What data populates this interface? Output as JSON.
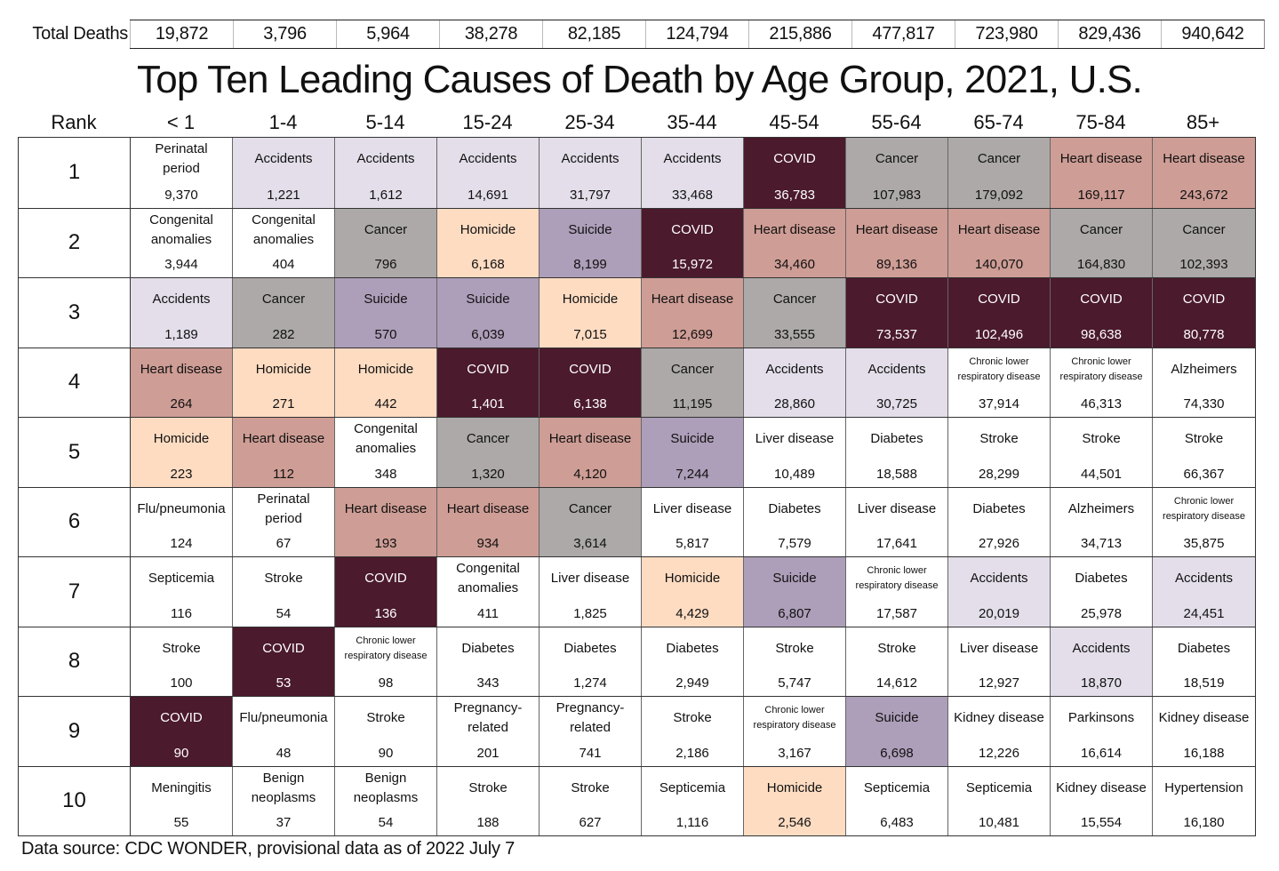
{
  "chart_data": {
    "type": "table",
    "title": "Top Ten Leading Causes of Death by Age Group, 2021, U.S.",
    "source": "Data source: CDC WONDER, provisional data as of 2022 July 7",
    "rank_header": "Rank",
    "totals_label": "Total Deaths",
    "age_groups": [
      "< 1",
      "1-4",
      "5-14",
      "15-24",
      "25-34",
      "35-44",
      "45-54",
      "55-64",
      "65-74",
      "75-84",
      "85+"
    ],
    "total_deaths": [
      "19,872",
      "3,796",
      "5,964",
      "38,278",
      "82,185",
      "124,794",
      "215,886",
      "477,817",
      "723,980",
      "829,436",
      "940,642"
    ],
    "cause_colors": {
      "Accidents": "#e3dee9",
      "COVID": "#4b1a2c",
      "Cancer": "#aca9a8",
      "Heart disease": "#ce9d95",
      "Homicide": "#fedcc2",
      "Suicide": "#ad9eb9",
      "default": "#ffffff"
    },
    "dark_causes": [
      "COVID"
    ],
    "rows": [
      {
        "rank": "1",
        "cells": [
          {
            "cause": "Perinatal period",
            "count": "9,370"
          },
          {
            "cause": "Accidents",
            "count": "1,221"
          },
          {
            "cause": "Accidents",
            "count": "1,612"
          },
          {
            "cause": "Accidents",
            "count": "14,691"
          },
          {
            "cause": "Accidents",
            "count": "31,797"
          },
          {
            "cause": "Accidents",
            "count": "33,468"
          },
          {
            "cause": "COVID",
            "count": "36,783"
          },
          {
            "cause": "Cancer",
            "count": "107,983"
          },
          {
            "cause": "Cancer",
            "count": "179,092"
          },
          {
            "cause": "Heart disease",
            "count": "169,117"
          },
          {
            "cause": "Heart disease",
            "count": "243,672"
          }
        ]
      },
      {
        "rank": "2",
        "cells": [
          {
            "cause": "Congenital anomalies",
            "count": "3,944"
          },
          {
            "cause": "Congenital anomalies",
            "count": "404"
          },
          {
            "cause": "Cancer",
            "count": "796"
          },
          {
            "cause": "Homicide",
            "count": "6,168"
          },
          {
            "cause": "Suicide",
            "count": "8,199"
          },
          {
            "cause": "COVID",
            "count": "15,972"
          },
          {
            "cause": "Heart disease",
            "count": "34,460"
          },
          {
            "cause": "Heart disease",
            "count": "89,136"
          },
          {
            "cause": "Heart disease",
            "count": "140,070"
          },
          {
            "cause": "Cancer",
            "count": "164,830"
          },
          {
            "cause": "Cancer",
            "count": "102,393"
          }
        ]
      },
      {
        "rank": "3",
        "cells": [
          {
            "cause": "Accidents",
            "count": "1,189"
          },
          {
            "cause": "Cancer",
            "count": "282"
          },
          {
            "cause": "Suicide",
            "count": "570"
          },
          {
            "cause": "Suicide",
            "count": "6,039"
          },
          {
            "cause": "Homicide",
            "count": "7,015"
          },
          {
            "cause": "Heart disease",
            "count": "12,699"
          },
          {
            "cause": "Cancer",
            "count": "33,555"
          },
          {
            "cause": "COVID",
            "count": "73,537"
          },
          {
            "cause": "COVID",
            "count": "102,496"
          },
          {
            "cause": "COVID",
            "count": "98,638"
          },
          {
            "cause": "COVID",
            "count": "80,778"
          }
        ]
      },
      {
        "rank": "4",
        "cells": [
          {
            "cause": "Heart disease",
            "count": "264"
          },
          {
            "cause": "Homicide",
            "count": "271"
          },
          {
            "cause": "Homicide",
            "count": "442"
          },
          {
            "cause": "COVID",
            "count": "1,401"
          },
          {
            "cause": "COVID",
            "count": "6,138"
          },
          {
            "cause": "Cancer",
            "count": "11,195"
          },
          {
            "cause": "Accidents",
            "count": "28,860"
          },
          {
            "cause": "Accidents",
            "count": "30,725"
          },
          {
            "cause": "Chronic lower respiratory disease",
            "count": "37,914"
          },
          {
            "cause": "Chronic lower respiratory disease",
            "count": "46,313"
          },
          {
            "cause": "Alzheimers",
            "count": "74,330"
          }
        ]
      },
      {
        "rank": "5",
        "cells": [
          {
            "cause": "Homicide",
            "count": "223"
          },
          {
            "cause": "Heart disease",
            "count": "112"
          },
          {
            "cause": "Congenital anomalies",
            "count": "348"
          },
          {
            "cause": "Cancer",
            "count": "1,320"
          },
          {
            "cause": "Heart disease",
            "count": "4,120"
          },
          {
            "cause": "Suicide",
            "count": "7,244"
          },
          {
            "cause": "Liver disease",
            "count": "10,489"
          },
          {
            "cause": "Diabetes",
            "count": "18,588"
          },
          {
            "cause": "Stroke",
            "count": "28,299"
          },
          {
            "cause": "Stroke",
            "count": "44,501"
          },
          {
            "cause": "Stroke",
            "count": "66,367"
          }
        ]
      },
      {
        "rank": "6",
        "cells": [
          {
            "cause": "Flu/pneumonia",
            "count": "124"
          },
          {
            "cause": "Perinatal period",
            "count": "67"
          },
          {
            "cause": "Heart disease",
            "count": "193"
          },
          {
            "cause": "Heart disease",
            "count": "934"
          },
          {
            "cause": "Cancer",
            "count": "3,614"
          },
          {
            "cause": "Liver disease",
            "count": "5,817"
          },
          {
            "cause": "Diabetes",
            "count": "7,579"
          },
          {
            "cause": "Liver disease",
            "count": "17,641"
          },
          {
            "cause": "Diabetes",
            "count": "27,926"
          },
          {
            "cause": "Alzheimers",
            "count": "34,713"
          },
          {
            "cause": "Chronic lower respiratory disease",
            "count": "35,875"
          }
        ]
      },
      {
        "rank": "7",
        "cells": [
          {
            "cause": "Septicemia",
            "count": "116"
          },
          {
            "cause": "Stroke",
            "count": "54"
          },
          {
            "cause": "COVID",
            "count": "136"
          },
          {
            "cause": "Congenital anomalies",
            "count": "411"
          },
          {
            "cause": "Liver disease",
            "count": "1,825"
          },
          {
            "cause": "Homicide",
            "count": "4,429"
          },
          {
            "cause": "Suicide",
            "count": "6,807"
          },
          {
            "cause": "Chronic lower respiratory disease",
            "count": "17,587"
          },
          {
            "cause": "Accidents",
            "count": "20,019"
          },
          {
            "cause": "Diabetes",
            "count": "25,978"
          },
          {
            "cause": "Accidents",
            "count": "24,451"
          }
        ]
      },
      {
        "rank": "8",
        "cells": [
          {
            "cause": "Stroke",
            "count": "100"
          },
          {
            "cause": "COVID",
            "count": "53"
          },
          {
            "cause": "Chronic lower respiratory disease",
            "count": "98"
          },
          {
            "cause": "Diabetes",
            "count": "343"
          },
          {
            "cause": "Diabetes",
            "count": "1,274"
          },
          {
            "cause": "Diabetes",
            "count": "2,949"
          },
          {
            "cause": "Stroke",
            "count": "5,747"
          },
          {
            "cause": "Stroke",
            "count": "14,612"
          },
          {
            "cause": "Liver disease",
            "count": "12,927"
          },
          {
            "cause": "Accidents",
            "count": "18,870"
          },
          {
            "cause": "Diabetes",
            "count": "18,519"
          }
        ]
      },
      {
        "rank": "9",
        "cells": [
          {
            "cause": "COVID",
            "count": "90"
          },
          {
            "cause": "Flu/pneumonia",
            "count": "48"
          },
          {
            "cause": "Stroke",
            "count": "90"
          },
          {
            "cause": "Pregnancy-related",
            "count": "201"
          },
          {
            "cause": "Pregnancy-related",
            "count": "741"
          },
          {
            "cause": "Stroke",
            "count": "2,186"
          },
          {
            "cause": "Chronic lower respiratory disease",
            "count": "3,167"
          },
          {
            "cause": "Suicide",
            "count": "6,698"
          },
          {
            "cause": "Kidney disease",
            "count": "12,226"
          },
          {
            "cause": "Parkinsons",
            "count": "16,614"
          },
          {
            "cause": "Kidney disease",
            "count": "16,188"
          }
        ]
      },
      {
        "rank": "10",
        "cells": [
          {
            "cause": "Meningitis",
            "count": "55"
          },
          {
            "cause": "Benign neoplasms",
            "count": "37"
          },
          {
            "cause": "Benign neoplasms",
            "count": "54"
          },
          {
            "cause": "Stroke",
            "count": "188"
          },
          {
            "cause": "Stroke",
            "count": "627"
          },
          {
            "cause": "Septicemia",
            "count": "1,116"
          },
          {
            "cause": "Homicide",
            "count": "2,546"
          },
          {
            "cause": "Septicemia",
            "count": "6,483"
          },
          {
            "cause": "Septicemia",
            "count": "10,481"
          },
          {
            "cause": "Kidney disease",
            "count": "15,554"
          },
          {
            "cause": "Hypertension",
            "count": "16,180"
          }
        ]
      }
    ]
  }
}
